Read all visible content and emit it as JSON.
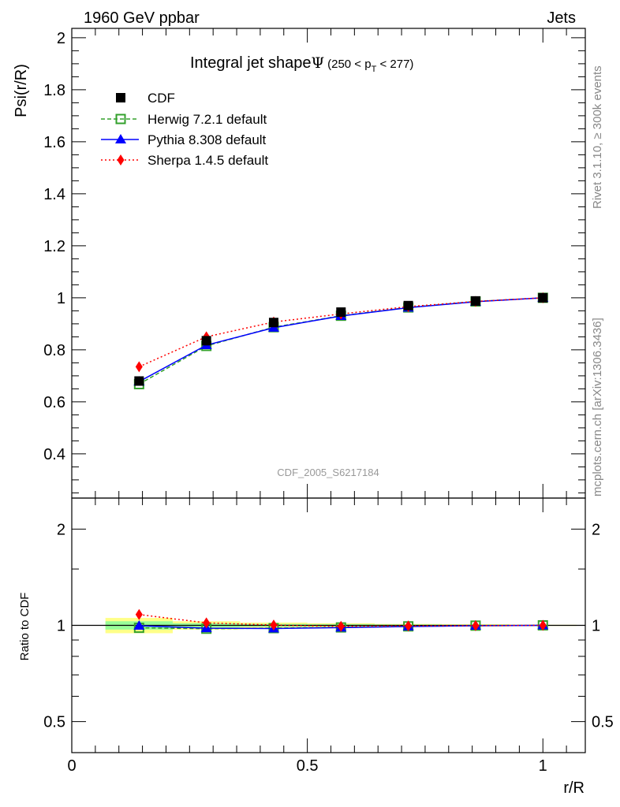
{
  "chart_data": [
    {
      "type": "line",
      "header_left": "1960 GeV ppbar",
      "header_right": "Jets",
      "title": "Integral jet shape",
      "title_symbol": "Ψ",
      "title_range": {
        "pre": "(250 < p",
        "sub": "T",
        "post": " < 277)"
      },
      "ylabel": "Psi(r/R)",
      "ylim": [
        0.23,
        2.036
      ],
      "yticks": [
        0.4,
        0.6,
        0.8,
        1,
        1.2,
        1.4,
        1.6,
        1.8,
        2
      ],
      "ytick_labels": [
        "0.4",
        "0.6",
        "0.8",
        "1",
        "1.2",
        "1.4",
        "1.6",
        "1.8",
        "2"
      ],
      "xlim": [
        0,
        1.09
      ],
      "x": [
        0.142857,
        0.285714,
        0.428571,
        0.571429,
        0.714286,
        0.857143,
        1.0
      ],
      "legend_position": "top-left",
      "series": [
        {
          "name": "CDF",
          "color": "#000000",
          "marker": "square",
          "line": "none",
          "values": [
            0.68,
            0.835,
            0.905,
            0.945,
            0.97,
            0.988,
            1.0
          ],
          "errors": [
            0.012,
            0.01,
            0.008,
            0.006,
            0.004,
            0.003,
            0.0
          ]
        },
        {
          "name": "Herwig 7.2.1 default",
          "color": "#33a02c",
          "marker": "open-square",
          "line": "dashed",
          "values": [
            0.668,
            0.815,
            0.887,
            0.931,
            0.963,
            0.986,
            1.0
          ]
        },
        {
          "name": "Pythia 8.308 default",
          "color": "#0000ff",
          "marker": "triangle",
          "line": "solid",
          "values": [
            0.678,
            0.818,
            0.885,
            0.93,
            0.962,
            0.985,
            1.0
          ]
        },
        {
          "name": "Sherpa 1.4.5 default",
          "color": "#ff0000",
          "marker": "diamond",
          "line": "dotted",
          "values": [
            0.735,
            0.85,
            0.907,
            0.938,
            0.966,
            0.986,
            1.0
          ]
        }
      ],
      "watermark": "CDF_2005_S6217184",
      "side_label_top": "Rivet 3.1.10, ≥ 300k events",
      "side_label_bottom": "mcplots.cern.ch [arXiv:1306.3436]"
    },
    {
      "type": "line",
      "ylabel": "Ratio to CDF",
      "yscale": "log",
      "ylim": [
        0.4,
        2.5
      ],
      "yticks": [
        0.5,
        1,
        2
      ],
      "ytick_labels": [
        "0.5",
        "1",
        "2"
      ],
      "xlabel": "r/R",
      "xticks": [
        0,
        0.5,
        1
      ],
      "xtick_labels": [
        "0",
        "0.5",
        "1"
      ],
      "band_yellow": [
        0.055,
        0.03,
        0.02,
        0.015,
        0.01,
        0.008,
        0.004
      ],
      "band_green": [
        0.03,
        0.015,
        0.01,
        0.008,
        0.006,
        0.004,
        0.002
      ]
    }
  ]
}
